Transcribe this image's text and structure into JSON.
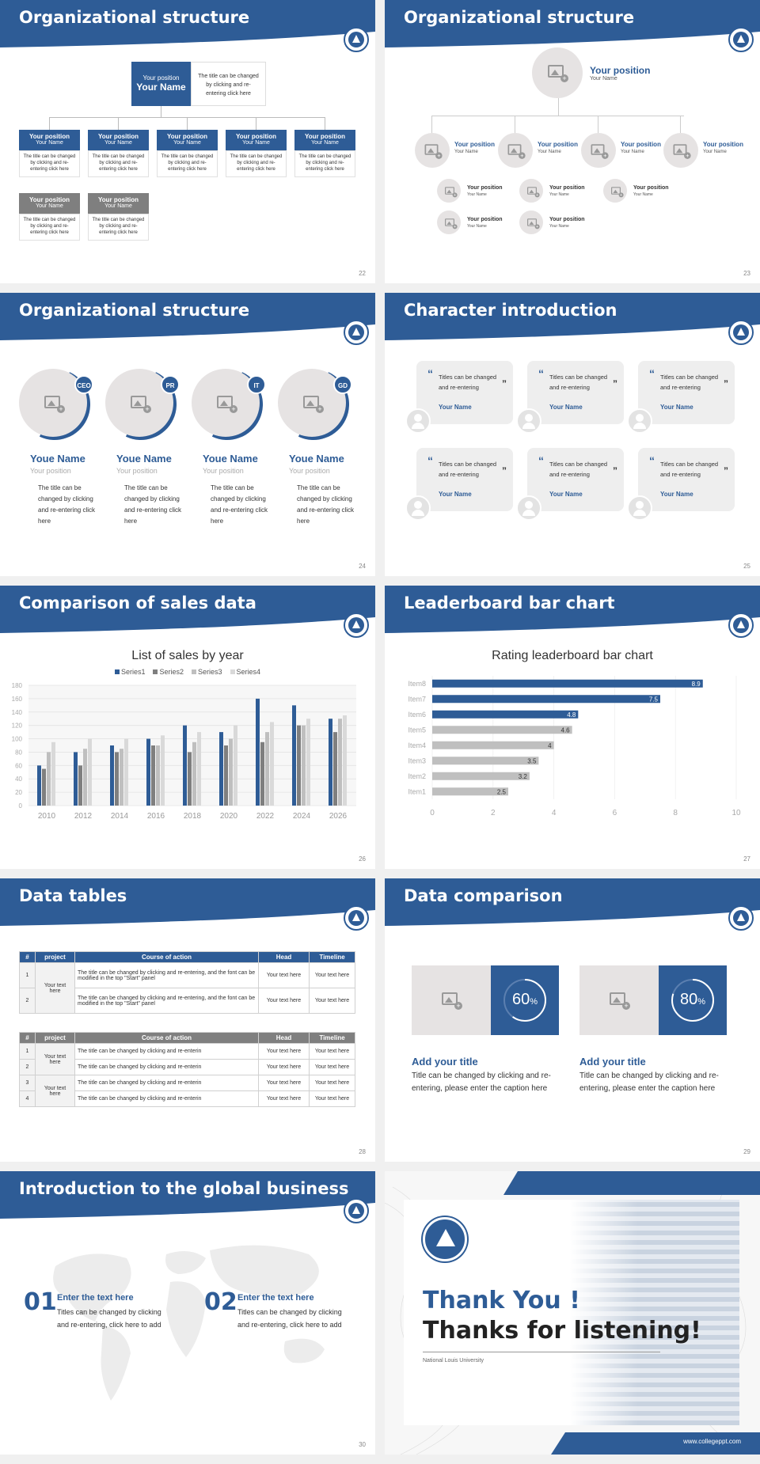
{
  "colors": {
    "brand": "#2e5c96",
    "gray": "#7f7f7f",
    "light": "#e6e3e3"
  },
  "slides": {
    "s22": {
      "title": "Organizational structure",
      "page": "22",
      "top": {
        "position": "Your position",
        "name": "Your Name",
        "desc": "The title can be changed by clicking and re-entering click here"
      },
      "row1": [
        {
          "position": "Your position",
          "name": "Your Name",
          "desc": "The title can be changed by clicking and re-entering click here"
        },
        {
          "position": "Your position",
          "name": "Your Name",
          "desc": "The title can be changed by clicking and re-entering click here"
        },
        {
          "position": "Your position",
          "name": "Your Name",
          "desc": "The title can be changed by clicking and re-entering click here"
        },
        {
          "position": "Your position",
          "name": "Your Name",
          "desc": "The title can be changed by clicking and re-entering click here"
        },
        {
          "position": "Your position",
          "name": "Your Name",
          "desc": "The title can be changed by clicking and re-entering click here"
        }
      ],
      "row2": [
        {
          "position": "Your position",
          "name": "Your Name",
          "desc": "The title can be changed by clicking and re-entering click here"
        },
        {
          "position": "Your position",
          "name": "Your Name",
          "desc": "The title can be changed by clicking and re-entering click here"
        }
      ]
    },
    "s23": {
      "title": "Organizational structure",
      "page": "23",
      "top": {
        "position": "Your position",
        "name": "Your Name"
      },
      "mid": [
        {
          "position": "Your position",
          "name": "Your Name"
        },
        {
          "position": "Your position",
          "name": "Your Name"
        },
        {
          "position": "Your position",
          "name": "Your Name"
        },
        {
          "position": "Your position",
          "name": "Your Name"
        }
      ],
      "sub": [
        {
          "position": "Your position",
          "name": "Your Name"
        },
        {
          "position": "Your position",
          "name": "Your Name"
        },
        {
          "position": "Your position",
          "name": "Your Name"
        },
        {
          "position": "Your position",
          "name": "Your Name"
        },
        {
          "position": "Your position",
          "name": "Your Name"
        }
      ]
    },
    "s24": {
      "title": "Organizational structure",
      "page": "24",
      "people": [
        {
          "badge": "CEO",
          "name": "Youe Name",
          "position": "Your position",
          "desc": "The title can be changed by clicking and re-entering click here"
        },
        {
          "badge": "PR",
          "name": "Youe Name",
          "position": "Your position",
          "desc": "The title can be changed by clicking and re-entering click here"
        },
        {
          "badge": "IT",
          "name": "Youe Name",
          "position": "Your position",
          "desc": "The title can be changed by clicking and re-entering click here"
        },
        {
          "badge": "GD",
          "name": "Youe Name",
          "position": "Your position",
          "desc": "The title can be changed by clicking and re-entering click here"
        }
      ]
    },
    "s25": {
      "title": "Character introduction",
      "page": "25",
      "cards": [
        {
          "quote": "Titles can be changed and re-entering",
          "name": "Your Name"
        },
        {
          "quote": "Titles can be changed and re-entering",
          "name": "Your Name"
        },
        {
          "quote": "Titles can be changed and re-entering",
          "name": "Your Name"
        },
        {
          "quote": "Titles can be changed and re-entering",
          "name": "Your Name"
        },
        {
          "quote": "Titles can be changed and re-entering",
          "name": "Your Name"
        },
        {
          "quote": "Titles can be changed and re-entering",
          "name": "Your Name"
        }
      ]
    },
    "s26": {
      "title": "Comparison of sales data",
      "page": "26"
    },
    "s27": {
      "title": "Leaderboard bar chart",
      "page": "27"
    },
    "s28": {
      "title": "Data tables",
      "page": "28",
      "t1": {
        "headers": [
          "#",
          "project",
          "Course of action",
          "Head",
          "Timeline"
        ],
        "project": "Your text here",
        "rows": [
          {
            "n": "1",
            "action": "The title can be changed by clicking and re-entering, and the font can be modified in the top \"Start\" panel",
            "head": "Your text here",
            "time": "Your text here"
          },
          {
            "n": "2",
            "action": "The title can be changed by clicking and re-entering, and the font can be modified in the top \"Start\" panel",
            "head": "Your text here",
            "time": "Your text here"
          }
        ]
      },
      "t2": {
        "headers": [
          "#",
          "project",
          "Course of action",
          "Head",
          "Timeline"
        ],
        "projects": [
          "Your text here",
          "Your text here"
        ],
        "rows": [
          {
            "n": "1",
            "action": "The title can be changed by clicking and re-enterin",
            "head": "Your text here",
            "time": "Your text here"
          },
          {
            "n": "2",
            "action": "The title can be changed by clicking and re-enterin",
            "head": "Your text here",
            "time": "Your text here"
          },
          {
            "n": "3",
            "action": "The title can be changed by clicking and re-enterin",
            "head": "Your text here",
            "time": "Your text here"
          },
          {
            "n": "4",
            "action": "The title can be changed by clicking and re-enterin",
            "head": "Your text here",
            "time": "Your text here"
          }
        ]
      }
    },
    "s29": {
      "title": "Data comparison",
      "page": "29",
      "items": [
        {
          "pct": 60,
          "value": "60",
          "unit": "%",
          "heading": "Add your title",
          "desc": "Title can be changed by clicking and re-entering, please enter the caption here"
        },
        {
          "pct": 80,
          "value": "80",
          "unit": "%",
          "heading": "Add your title",
          "desc": "Title can be changed by clicking and re-entering, please enter the caption here"
        }
      ]
    },
    "s30": {
      "title": "Introduction to the global business",
      "page": "30",
      "items": [
        {
          "num": "01",
          "heading": "Enter the text here",
          "desc": "Titles can be changed by clicking and re-entering, click here to add"
        },
        {
          "num": "02",
          "heading": "Enter the text here",
          "desc": "Titles can be changed by clicking and re-entering, click here to add"
        }
      ]
    },
    "s31": {
      "thanks1": "Thank You !",
      "thanks2": "Thanks for listening!",
      "university": "National Louis University",
      "url": "www.collegeppt.com"
    }
  },
  "chart_data": [
    {
      "type": "bar",
      "title": "List of sales by year",
      "categories": [
        "2010",
        "2012",
        "2014",
        "2016",
        "2018",
        "2020",
        "2022",
        "2024",
        "2026"
      ],
      "ylim": [
        0,
        180
      ],
      "yticks": [
        "0",
        "20",
        "40",
        "60",
        "80",
        "100",
        "120",
        "140",
        "160",
        "180"
      ],
      "legend": "top",
      "series": [
        {
          "name": "Series1",
          "color": "#2e5c96",
          "values": [
            60,
            80,
            90,
            100,
            120,
            110,
            160,
            150,
            130
          ]
        },
        {
          "name": "Series2",
          "color": "#7f7f7f",
          "values": [
            55,
            60,
            80,
            90,
            80,
            90,
            95,
            120,
            110
          ]
        },
        {
          "name": "Series3",
          "color": "#bfbfbf",
          "values": [
            80,
            85,
            85,
            90,
            95,
            100,
            110,
            120,
            130
          ]
        },
        {
          "name": "Series4",
          "color": "#d9d9d9",
          "values": [
            95,
            100,
            100,
            105,
            110,
            120,
            125,
            130,
            135
          ]
        }
      ]
    },
    {
      "type": "bar",
      "orientation": "horizontal",
      "title": "Rating leaderboard bar chart",
      "categories": [
        "Item8",
        "Item7",
        "Item6",
        "Item5",
        "Item4",
        "Item3",
        "Item2",
        "Item1"
      ],
      "values": [
        8.9,
        7.5,
        4.8,
        4.6,
        4,
        3.5,
        3.2,
        2.5
      ],
      "labels": [
        "8.9",
        "7.5",
        "4.8",
        "4.6",
        "4",
        "3.5",
        "3.2",
        "2.5"
      ],
      "xlim": [
        0,
        10
      ],
      "xticks": [
        "0",
        "2",
        "4",
        "6",
        "8",
        "10"
      ]
    }
  ]
}
